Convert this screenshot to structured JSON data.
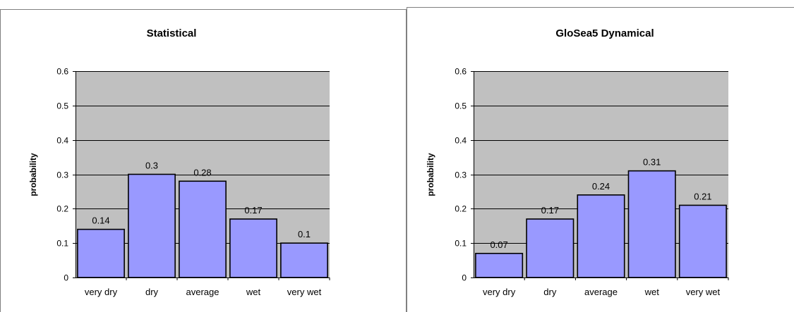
{
  "chart_data": [
    {
      "type": "bar",
      "title": "Statistical",
      "xlabel": "",
      "ylabel": "probability",
      "categories": [
        "very dry",
        "dry",
        "average",
        "wet",
        "very wet"
      ],
      "values": [
        0.14,
        0.3,
        0.28,
        0.17,
        0.1
      ],
      "data_labels": [
        "0.14",
        "0.3",
        "0.28",
        "0.17",
        "0.1"
      ],
      "yticks": [
        "0",
        "0.1",
        "0.2",
        "0.3",
        "0.4",
        "0.5",
        "0.6"
      ],
      "ylim": [
        0,
        0.6
      ],
      "grid": true,
      "plot_bg": "#c0c0c0",
      "bar_color": "#9999ff"
    },
    {
      "type": "bar",
      "title": "GloSea5 Dynamical",
      "xlabel": "",
      "ylabel": "probability",
      "categories": [
        "very dry",
        "dry",
        "average",
        "wet",
        "very wet"
      ],
      "values": [
        0.07,
        0.17,
        0.24,
        0.31,
        0.21
      ],
      "data_labels": [
        "0.07",
        "0.17",
        "0.24",
        "0.31",
        "0.21"
      ],
      "yticks": [
        "0",
        "0.1",
        "0.2",
        "0.3",
        "0.4",
        "0.5",
        "0.6"
      ],
      "ylim": [
        0,
        0.6
      ],
      "grid": true,
      "plot_bg": "#c0c0c0",
      "bar_color": "#9999ff"
    }
  ]
}
